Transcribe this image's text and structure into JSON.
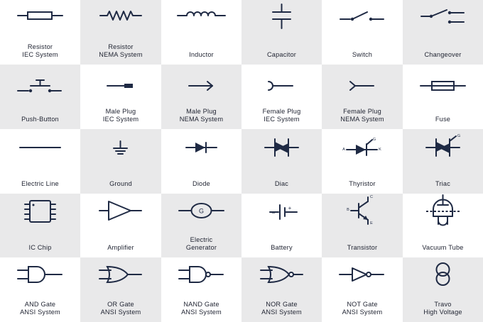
{
  "colors": {
    "ink": "#1f2a44",
    "shade": "#e9e9ea",
    "white": "#ffffff",
    "text": "#1e2230"
  },
  "symbols": [
    {
      "icon": "resistor-iec-icon",
      "label": [
        "Resistor",
        "IEC System"
      ]
    },
    {
      "icon": "resistor-nema-icon",
      "label": [
        "Resistor",
        "NEMA System"
      ]
    },
    {
      "icon": "inductor-icon",
      "label": [
        "Inductor"
      ]
    },
    {
      "icon": "capacitor-icon",
      "label": [
        "Capacitor"
      ]
    },
    {
      "icon": "switch-icon",
      "label": [
        "Switch"
      ]
    },
    {
      "icon": "changeover-icon",
      "label": [
        "Changeover"
      ]
    },
    {
      "icon": "push-button-icon",
      "label": [
        "Push-Button"
      ]
    },
    {
      "icon": "male-plug-iec-icon",
      "label": [
        "Male Plug",
        "IEC System"
      ]
    },
    {
      "icon": "male-plug-nema-icon",
      "label": [
        "Male Plug",
        "NEMA System"
      ]
    },
    {
      "icon": "female-plug-iec-icon",
      "label": [
        "Female Plug",
        "IEC System"
      ]
    },
    {
      "icon": "female-plug-nema-icon",
      "label": [
        "Female Plug",
        "NEMA System"
      ]
    },
    {
      "icon": "fuse-icon",
      "label": [
        "Fuse"
      ]
    },
    {
      "icon": "electric-line-icon",
      "label": [
        "Electric Line"
      ]
    },
    {
      "icon": "ground-icon",
      "label": [
        "Ground"
      ]
    },
    {
      "icon": "diode-icon",
      "label": [
        "Diode"
      ]
    },
    {
      "icon": "diac-icon",
      "label": [
        "Diac"
      ]
    },
    {
      "icon": "thyristor-icon",
      "label": [
        "Thyristor"
      ],
      "marks": [
        "A",
        "K",
        "G"
      ]
    },
    {
      "icon": "triac-icon",
      "label": [
        "Triac"
      ],
      "marks": [
        "G"
      ]
    },
    {
      "icon": "ic-chip-icon",
      "label": [
        "IC Chip"
      ]
    },
    {
      "icon": "amplifier-icon",
      "label": [
        "Amplifier"
      ]
    },
    {
      "icon": "electric-generator-icon",
      "label": [
        "Electric",
        "Generator"
      ],
      "marks": [
        "G"
      ]
    },
    {
      "icon": "battery-icon",
      "label": [
        "Battery"
      ],
      "marks": [
        "–",
        "+"
      ]
    },
    {
      "icon": "transistor-icon",
      "label": [
        "Transistor"
      ],
      "marks": [
        "B",
        "C",
        "E"
      ]
    },
    {
      "icon": "vacuum-tube-icon",
      "label": [
        "Vacuum Tube"
      ]
    },
    {
      "icon": "and-gate-icon",
      "label": [
        "AND Gate",
        "ANSI System"
      ]
    },
    {
      "icon": "or-gate-icon",
      "label": [
        "OR Gate",
        "ANSI System"
      ]
    },
    {
      "icon": "nand-gate-icon",
      "label": [
        "NAND Gate",
        "ANSI System"
      ]
    },
    {
      "icon": "nor-gate-icon",
      "label": [
        "NOR Gate",
        "ANSI System"
      ]
    },
    {
      "icon": "not-gate-icon",
      "label": [
        "NOT Gate",
        "ANSI System"
      ]
    },
    {
      "icon": "travo-icon",
      "label": [
        "Travo",
        "High Voltage"
      ]
    }
  ]
}
